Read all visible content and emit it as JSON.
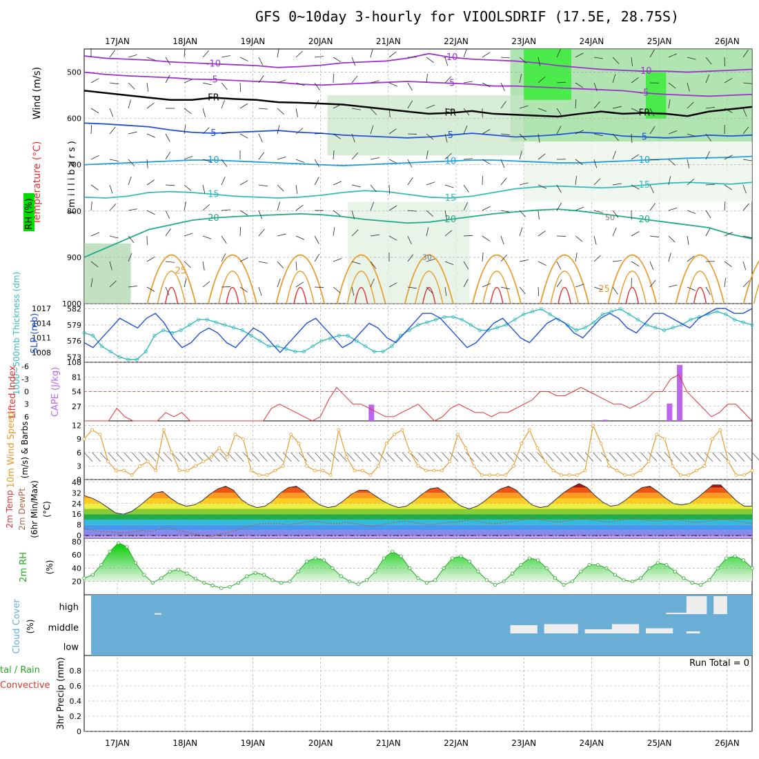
{
  "title": "GFS 0~10day 3-hourly for VIOOLSDRIF (17.5E, 28.75S)",
  "dates": [
    "17JAN",
    "18JAN",
    "19JAN",
    "20JAN",
    "21JAN",
    "22JAN",
    "23JAN",
    "24JAN",
    "25JAN",
    "26JAN"
  ],
  "colors": {
    "grid": "#999999",
    "purple": "#9933cc",
    "blue": "#1f4fd6",
    "cyan": "#33bbbb",
    "orange": "#e89a2a",
    "red": "#e03030",
    "green": "#22aa22",
    "cloud": "#6aaed6",
    "rh_green": "#00dd00"
  },
  "panels": {
    "upper": {
      "left_labels": [
        {
          "text": "Wind (m/s)",
          "color": "#000000"
        },
        {
          "text": "Temperature (°C)",
          "color": "#e03030"
        },
        {
          "text": "RH (%)",
          "color": "#000000"
        },
        {
          "text": "(millibars)",
          "color": "#000000"
        }
      ]
    },
    "thickness": {
      "label": "1000~500mb Thickness (dm)",
      "label2": "SLP (mb)"
    },
    "cape": {
      "label": "Lifted Index",
      "label2": "CAPE (J/kg)"
    },
    "wind": {
      "label": "10m Wind Speed",
      "label2": "(m/s) & Barbs"
    },
    "temp": {
      "label": "2m Temp",
      "label2": "2m DewPt",
      "label3": "(6hr Min/Max)",
      "label4": "(°C)"
    },
    "rh": {
      "label": "2m RH",
      "label2": "(%)"
    },
    "cloud": {
      "label": "Cloud Cover",
      "label2": "(%)",
      "levels": [
        "high",
        "middle",
        "low"
      ]
    },
    "precip": {
      "label": "tal / Rain",
      "label2": "Convective",
      "label3": "3hr Precip (mm)",
      "run_total": "Run Total = 0"
    }
  },
  "chart_data": [
    {
      "type": "contour",
      "title": "Pressure-level cross section",
      "ylabel": "millibars",
      "yticks": [
        500,
        600,
        700,
        800,
        900,
        1000
      ],
      "ylim": [
        450,
        1000
      ],
      "isotherm_labels": [
        "-10",
        "-5",
        "FR",
        "5",
        "10",
        "15",
        "20",
        "25",
        "30",
        "50"
      ],
      "isotherms": [
        {
          "label": "-10",
          "color": "#9933cc",
          "p": [
            465,
            470,
            472,
            474,
            478,
            480,
            482,
            484,
            486,
            490,
            488,
            485,
            480,
            478,
            476,
            470,
            460,
            468,
            472,
            474,
            476,
            480,
            486,
            490,
            494,
            496,
            498,
            498,
            500,
            498,
            496,
            494
          ]
        },
        {
          "label": "-5",
          "color": "#9933cc",
          "p": [
            500,
            505,
            508,
            510,
            512,
            515,
            516,
            518,
            520,
            522,
            526,
            528,
            526,
            524,
            522,
            520,
            522,
            524,
            526,
            530,
            530,
            532,
            534,
            536,
            538,
            540,
            545,
            548,
            550,
            552,
            550,
            548
          ]
        },
        {
          "label": "FR",
          "color": "#000000",
          "p": [
            540,
            545,
            550,
            555,
            560,
            560,
            555,
            558,
            560,
            565,
            566,
            568,
            570,
            575,
            580,
            585,
            590,
            588,
            584,
            590,
            592,
            594,
            596,
            590,
            585,
            590,
            588,
            590,
            595,
            585,
            580,
            575
          ]
        },
        {
          "label": "5",
          "color": "#1f4fd6",
          "p": [
            610,
            612,
            615,
            618,
            625,
            630,
            632,
            630,
            628,
            626,
            630,
            632,
            636,
            638,
            640,
            642,
            640,
            636,
            632,
            636,
            640,
            638,
            635,
            630,
            632,
            638,
            640,
            642,
            640,
            636,
            638,
            636
          ]
        },
        {
          "label": "10",
          "color": "#1f9fd6",
          "p": [
            700,
            698,
            696,
            694,
            692,
            690,
            690,
            692,
            694,
            696,
            698,
            700,
            702,
            700,
            698,
            696,
            694,
            692,
            690,
            690,
            692,
            694,
            696,
            696,
            694,
            692,
            690,
            688,
            686,
            685,
            684,
            682
          ]
        },
        {
          "label": "15",
          "color": "#33bbbb",
          "p": [
            770,
            772,
            768,
            760,
            758,
            760,
            764,
            768,
            770,
            772,
            770,
            766,
            760,
            756,
            758,
            764,
            770,
            772,
            768,
            760,
            752,
            748,
            746,
            748,
            750,
            748,
            744,
            740,
            738,
            740,
            742,
            738
          ]
        },
        {
          "label": "20",
          "color": "#22aa88",
          "p": [
            900,
            880,
            860,
            840,
            830,
            820,
            815,
            812,
            810,
            808,
            806,
            808,
            812,
            818,
            822,
            826,
            824,
            818,
            812,
            806,
            802,
            798,
            796,
            800,
            806,
            812,
            818,
            824,
            830,
            836,
            850,
            860
          ]
        }
      ],
      "warm_peaks_x_days": [
        0.8,
        1.7,
        2.7,
        3.6,
        4.6,
        5.6,
        6.6,
        7.6,
        8.6,
        9.6
      ]
    },
    {
      "type": "line",
      "title": "1000~500mb Thickness / SLP",
      "x_days_step": 0.125,
      "series": [
        {
          "name": "Thickness (dm)",
          "color": "#33bbbb",
          "axis": "left",
          "yticks": [
            573,
            576,
            579,
            582
          ],
          "ylim": [
            572,
            583
          ],
          "values": [
            577.5,
            577,
            575,
            574,
            573,
            572.5,
            572.5,
            574,
            577,
            578,
            577.5,
            578,
            579,
            580,
            580,
            579.5,
            579,
            578.5,
            578,
            577,
            576,
            575,
            575,
            574.5,
            574,
            574,
            575,
            576,
            576.5,
            577,
            577,
            576,
            575,
            574,
            574,
            575,
            577,
            578,
            579,
            579.5,
            580,
            580.5,
            580.5,
            580,
            579,
            578,
            578,
            578.5,
            579,
            580,
            581,
            581.5,
            582,
            581,
            580,
            579,
            578,
            578.5,
            579.5,
            581,
            581.5,
            582,
            581,
            580,
            579,
            578.5,
            578,
            578.5,
            579,
            580,
            580.5,
            581,
            581.5,
            581,
            580,
            579.5,
            579
          ]
        },
        {
          "name": "SLP (mb)",
          "color": "#1f4fd6",
          "axis": "right",
          "yticks": [
            1008,
            1011,
            1014,
            1017
          ],
          "ylim": [
            1006,
            1018
          ],
          "values": [
            1010,
            1009,
            1011,
            1013,
            1015,
            1014,
            1013,
            1015,
            1016,
            1014,
            1011,
            1009,
            1010,
            1012,
            1013,
            1012,
            1010,
            1009,
            1011,
            1013,
            1012,
            1010,
            1008,
            1010,
            1012,
            1014,
            1015,
            1013,
            1011,
            1009,
            1010,
            1012,
            1014,
            1013,
            1011,
            1010,
            1012,
            1014,
            1016,
            1016,
            1015,
            1013,
            1011,
            1009,
            1010,
            1012,
            1014,
            1015,
            1013,
            1011,
            1010,
            1012,
            1014,
            1015,
            1014,
            1012,
            1011,
            1013,
            1015,
            1016,
            1015,
            1013,
            1012,
            1014,
            1016,
            1016,
            1015,
            1014,
            1013,
            1015,
            1016,
            1017,
            1017,
            1016,
            1016,
            1017
          ]
        }
      ]
    },
    {
      "type": "bar+line",
      "title": "Lifted Index / CAPE",
      "li_yticks": [
        -6,
        -3,
        0,
        3,
        6
      ],
      "cape_yticks": [
        27,
        54,
        81,
        108
      ],
      "cape_ylim": [
        0,
        108
      ],
      "li_values": [
        7,
        7,
        7,
        7,
        4,
        6,
        7,
        7,
        7,
        7,
        5,
        6,
        5,
        7,
        7,
        7,
        7,
        7,
        7,
        7,
        7,
        7,
        7,
        4,
        3,
        4,
        5,
        6,
        7,
        6,
        2,
        -1,
        1,
        3,
        3,
        4,
        5,
        6,
        6,
        5,
        4,
        3,
        5,
        7,
        6,
        4,
        3,
        4,
        5,
        5,
        6,
        5,
        5,
        4,
        3,
        2,
        0,
        0,
        1,
        1,
        0,
        -1,
        0,
        1,
        2,
        3,
        3,
        4,
        3,
        2,
        0,
        0,
        -3,
        -4,
        0,
        2,
        4,
        6,
        5,
        3,
        3,
        5,
        7
      ],
      "cape_bars": [
        {
          "day": 3.75,
          "value": 30
        },
        {
          "day": 7.2,
          "value": 2
        },
        {
          "day": 8.15,
          "value": 32
        },
        {
          "day": 8.3,
          "value": 103
        }
      ]
    },
    {
      "type": "line",
      "title": "10m Wind Speed",
      "ylabel": "(m/s)",
      "yticks": [
        0,
        3,
        6,
        9,
        12
      ],
      "ylim": [
        0,
        13
      ],
      "values": [
        9,
        11,
        10,
        4,
        2,
        2,
        1,
        3,
        4,
        2,
        11,
        6,
        2,
        2,
        3,
        4,
        5,
        7,
        5,
        10,
        9,
        2,
        1,
        1,
        2,
        3,
        10,
        8,
        3,
        2,
        2,
        1,
        11,
        5,
        2,
        2,
        1,
        3,
        8,
        10,
        11,
        6,
        3,
        2,
        2,
        2,
        4,
        10,
        7,
        3,
        1,
        1,
        1,
        1,
        3,
        8,
        11,
        7,
        4,
        2,
        1,
        1,
        1,
        2,
        12,
        8,
        3,
        2,
        1,
        1,
        2,
        4,
        10,
        9,
        3,
        1,
        1,
        2,
        3,
        9,
        11,
        4,
        1,
        1,
        2
      ]
    },
    {
      "type": "area",
      "title": "2m Temp / DewPt",
      "ylabel": "(°C)",
      "yticks": [
        0,
        8,
        16,
        24,
        32,
        40
      ],
      "ylim": [
        -2,
        42
      ],
      "temp_values": [
        30,
        28,
        25,
        21,
        17,
        16,
        18,
        22,
        27,
        32,
        33,
        28,
        24,
        22,
        23,
        26,
        31,
        35,
        37,
        34,
        27,
        23,
        21,
        22,
        26,
        32,
        36,
        37,
        33,
        27,
        23,
        21,
        22,
        26,
        31,
        34,
        34,
        30,
        26,
        23,
        21,
        22,
        26,
        31,
        35,
        36,
        32,
        26,
        22,
        20,
        22,
        26,
        31,
        35,
        37,
        34,
        28,
        23,
        21,
        22,
        27,
        32,
        36,
        39,
        36,
        30,
        25,
        22,
        23,
        27,
        32,
        36,
        37,
        33,
        28,
        24,
        23,
        24,
        28,
        33,
        38,
        38,
        32,
        26,
        22,
        22
      ],
      "dewpt_values": [
        5,
        4,
        3,
        3,
        2,
        2,
        3,
        4,
        3,
        5,
        6,
        4,
        3,
        1,
        0,
        -1,
        1,
        2,
        4,
        6,
        8,
        9,
        9,
        9,
        8,
        9,
        10,
        11,
        10,
        9,
        9,
        10,
        9,
        8,
        7,
        8,
        9,
        10,
        11,
        10,
        9,
        8,
        9,
        10,
        10,
        11,
        12,
        10,
        9,
        9,
        10,
        11,
        12,
        13,
        12,
        11,
        10,
        11,
        12,
        13,
        12,
        11,
        10,
        11,
        12,
        13,
        12,
        11,
        11,
        12,
        12,
        11,
        10,
        10,
        11,
        12,
        12,
        11,
        10,
        9
      ]
    },
    {
      "type": "area",
      "title": "2m RH",
      "ylabel": "(%)",
      "yticks": [
        20,
        40,
        60,
        80
      ],
      "ylim": [
        0,
        85
      ],
      "values": [
        25,
        30,
        45,
        65,
        78,
        72,
        48,
        30,
        18,
        25,
        35,
        38,
        32,
        24,
        18,
        14,
        10,
        12,
        18,
        28,
        33,
        30,
        22,
        18,
        20,
        35,
        50,
        55,
        52,
        40,
        28,
        20,
        16,
        22,
        35,
        55,
        65,
        58,
        40,
        25,
        18,
        22,
        40,
        55,
        58,
        50,
        35,
        22,
        15,
        20,
        32,
        45,
        55,
        52,
        40,
        25,
        15,
        20,
        35,
        45,
        45,
        40,
        30,
        22,
        20,
        25,
        40,
        48,
        45,
        35,
        25,
        18,
        15,
        22,
        40,
        55,
        58,
        52,
        40
      ]
    },
    {
      "type": "bar",
      "title": "Cloud Cover",
      "ylabel": "(%)",
      "levels": [
        "high",
        "middle",
        "low"
      ],
      "high_blocks": [
        {
          "start_day": 0.55,
          "end_day": 0.65,
          "value": 5
        },
        {
          "start_day": 8.1,
          "end_day": 8.4,
          "value": 8
        },
        {
          "start_day": 8.4,
          "end_day": 8.7,
          "value": 100
        },
        {
          "start_day": 8.8,
          "end_day": 9.0,
          "value": 100
        }
      ],
      "middle_blocks": [
        {
          "start_day": 5.8,
          "end_day": 6.2,
          "value": 40
        },
        {
          "start_day": 6.3,
          "end_day": 6.8,
          "value": 45
        },
        {
          "start_day": 6.9,
          "end_day": 7.3,
          "value": 20
        },
        {
          "start_day": 7.3,
          "end_day": 7.7,
          "value": 45
        },
        {
          "start_day": 7.8,
          "end_day": 8.2,
          "value": 25
        },
        {
          "start_day": 8.4,
          "end_day": 8.6,
          "value": 10
        }
      ]
    },
    {
      "type": "bar",
      "title": "3hr Precip",
      "ylabel": "3hr Precip (mm)",
      "yticks": [
        0,
        0.2,
        0.4,
        0.6,
        0.8
      ],
      "ylim": [
        0,
        1
      ],
      "values": []
    }
  ]
}
